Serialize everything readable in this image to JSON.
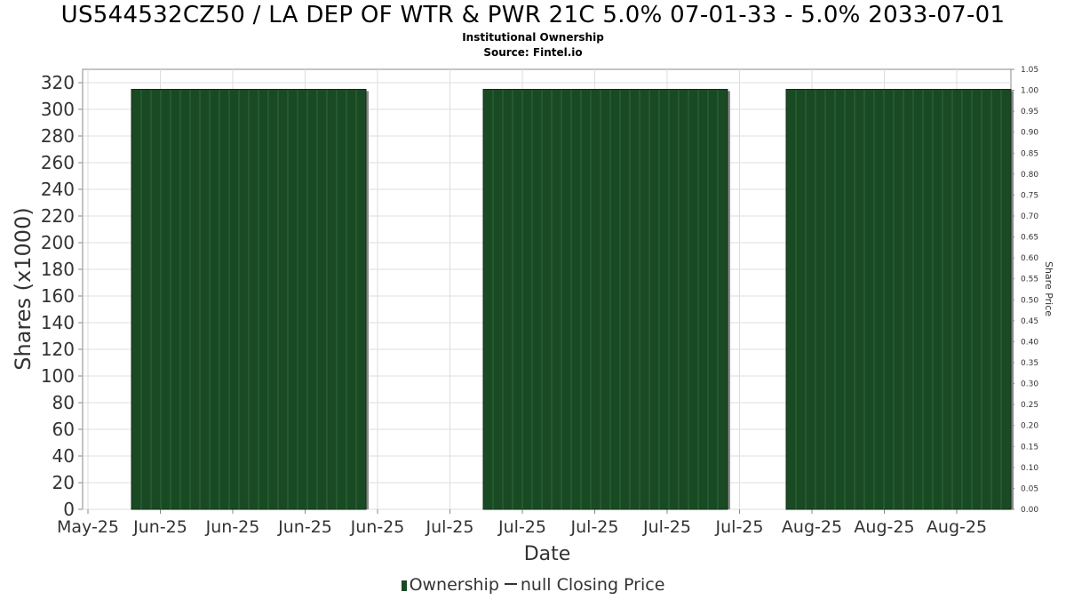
{
  "header": {
    "title": "US544532CZ50 / LA DEP OF WTR & PWR 21C 5.0% 07-01-33 - 5.0% 2033-07-01",
    "subtitle": "Institutional Ownership",
    "source": "Source: Fintel.io"
  },
  "legend": {
    "ownership": "Ownership",
    "price": "null Closing Price"
  },
  "colors": {
    "bar": "#1a4a24",
    "bar_line": "#2c6a38",
    "bar_shadow": "#8a8a8a",
    "grid": "#dddddd",
    "axis": "#888888"
  },
  "chart_data": {
    "type": "bar",
    "xlabel": "Date",
    "ylabel": "Shares (x1000)",
    "y2label": "Share Price",
    "ylim": [
      0,
      330
    ],
    "yticks": [
      0,
      20,
      40,
      60,
      80,
      100,
      120,
      140,
      160,
      180,
      200,
      220,
      240,
      260,
      280,
      300,
      320
    ],
    "y2lim": [
      0,
      1.05
    ],
    "y2ticks": [
      "0.00",
      "0.05",
      "0.10",
      "0.15",
      "0.20",
      "0.25",
      "0.30",
      "0.35",
      "0.40",
      "0.45",
      "0.50",
      "0.55",
      "0.60",
      "0.65",
      "0.70",
      "0.75",
      "0.80",
      "0.85",
      "0.90",
      "0.95",
      "1.00",
      "1.05"
    ],
    "xticks": [
      "May-25",
      "Jun-25",
      "Jun-25",
      "Jun-25",
      "Jun-25",
      "Jul-25",
      "Jul-25",
      "Jul-25",
      "Jul-25",
      "Jul-25",
      "Aug-25",
      "Aug-25",
      "Aug-25"
    ],
    "x_range": [
      "2025-05-28",
      "2025-08-31"
    ],
    "series": [
      {
        "name": "Ownership",
        "segments": [
          {
            "start": "2025-06-02",
            "end": "2025-06-26",
            "value": 315
          },
          {
            "start": "2025-07-08",
            "end": "2025-08-02",
            "value": 315
          },
          {
            "start": "2025-08-08",
            "end": "2025-08-31",
            "value": 315
          }
        ]
      }
    ],
    "grid": true
  }
}
